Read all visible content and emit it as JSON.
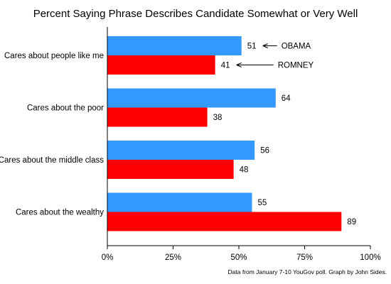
{
  "chart_data": {
    "type": "bar",
    "orientation": "horizontal",
    "title": "Percent Saying Phrase Describes Candidate Somewhat or Very Well",
    "categories": [
      "Cares about people like me",
      "Cares about the poor",
      "Cares about the middle class",
      "Cares about the wealthy"
    ],
    "series": [
      {
        "name": "OBAMA",
        "color": "#3399ff",
        "values": [
          51,
          64,
          56,
          55
        ]
      },
      {
        "name": "ROMNEY",
        "color": "#ff0000",
        "values": [
          41,
          38,
          48,
          89
        ]
      }
    ],
    "xlim": [
      0,
      100
    ],
    "xticks": [
      0,
      25,
      50,
      75,
      100
    ],
    "xtick_labels": [
      "0%",
      "25%",
      "50%",
      "75%",
      "100%"
    ],
    "xlabel": "",
    "ylabel": "",
    "grid": false,
    "legend": "inline arrows on first category",
    "note": "Data from January 7-10 YouGov poll.  Graph by John Sides."
  }
}
